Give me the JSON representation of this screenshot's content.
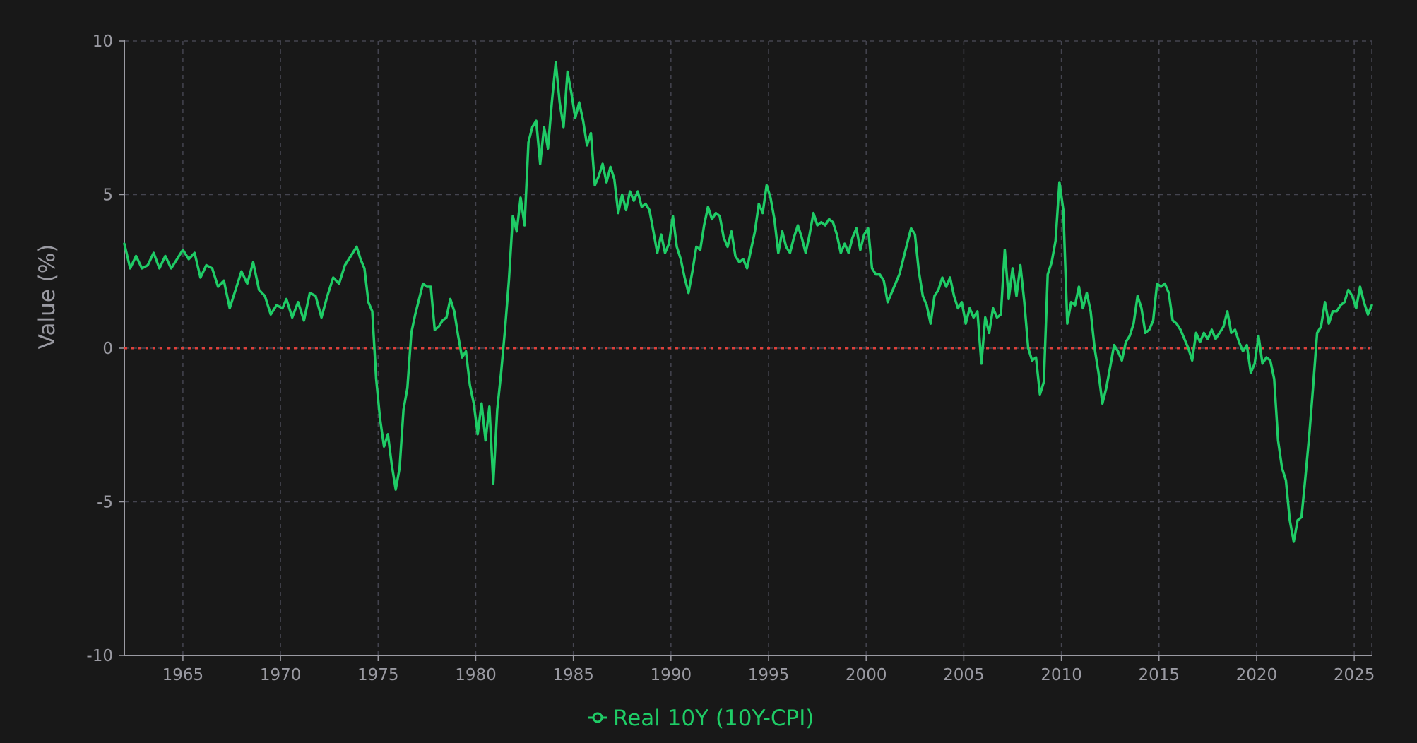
{
  "chart_data": {
    "type": "line",
    "title": "",
    "xlabel": "",
    "ylabel": "Value (%)",
    "xlim": [
      1962.0,
      2025.9
    ],
    "ylim": [
      -10,
      10
    ],
    "x_ticks": [
      1965,
      1970,
      1975,
      1980,
      1985,
      1990,
      1995,
      2000,
      2005,
      2010,
      2015,
      2020,
      2025
    ],
    "y_ticks": [
      -10,
      -5,
      0,
      5,
      10
    ],
    "grid": true,
    "legend_position": "bottom-center",
    "reference_line": {
      "y": 0,
      "color": "#e0403a",
      "style": "dotted"
    },
    "series": [
      {
        "name": "Real 10Y (10Y-CPI)",
        "color": "#1fcc66",
        "points": [
          [
            1962.0,
            3.4
          ],
          [
            1962.3,
            2.6
          ],
          [
            1962.6,
            3.0
          ],
          [
            1962.9,
            2.6
          ],
          [
            1963.2,
            2.7
          ],
          [
            1963.5,
            3.1
          ],
          [
            1963.8,
            2.6
          ],
          [
            1964.1,
            3.0
          ],
          [
            1964.4,
            2.6
          ],
          [
            1964.7,
            2.9
          ],
          [
            1965.0,
            3.2
          ],
          [
            1965.3,
            2.9
          ],
          [
            1965.6,
            3.1
          ],
          [
            1965.9,
            2.3
          ],
          [
            1966.2,
            2.7
          ],
          [
            1966.5,
            2.6
          ],
          [
            1966.8,
            2.0
          ],
          [
            1967.1,
            2.2
          ],
          [
            1967.4,
            1.3
          ],
          [
            1967.7,
            1.9
          ],
          [
            1968.0,
            2.5
          ],
          [
            1968.3,
            2.1
          ],
          [
            1968.6,
            2.8
          ],
          [
            1968.9,
            1.9
          ],
          [
            1969.2,
            1.7
          ],
          [
            1969.5,
            1.1
          ],
          [
            1969.8,
            1.4
          ],
          [
            1970.1,
            1.3
          ],
          [
            1970.3,
            1.6
          ],
          [
            1970.6,
            1.0
          ],
          [
            1970.9,
            1.5
          ],
          [
            1971.2,
            0.9
          ],
          [
            1971.5,
            1.8
          ],
          [
            1971.8,
            1.7
          ],
          [
            1972.1,
            1.0
          ],
          [
            1972.4,
            1.7
          ],
          [
            1972.7,
            2.3
          ],
          [
            1973.0,
            2.1
          ],
          [
            1973.3,
            2.7
          ],
          [
            1973.6,
            3.0
          ],
          [
            1973.9,
            3.3
          ],
          [
            1974.1,
            2.9
          ],
          [
            1974.3,
            2.6
          ],
          [
            1974.5,
            1.5
          ],
          [
            1974.7,
            1.2
          ],
          [
            1974.9,
            -1.0
          ],
          [
            1975.1,
            -2.3
          ],
          [
            1975.3,
            -3.2
          ],
          [
            1975.5,
            -2.8
          ],
          [
            1975.7,
            -3.8
          ],
          [
            1975.9,
            -4.6
          ],
          [
            1976.1,
            -3.9
          ],
          [
            1976.3,
            -2.0
          ],
          [
            1976.5,
            -1.3
          ],
          [
            1976.7,
            0.5
          ],
          [
            1976.9,
            1.1
          ],
          [
            1977.1,
            1.6
          ],
          [
            1977.3,
            2.1
          ],
          [
            1977.5,
            2.0
          ],
          [
            1977.7,
            2.0
          ],
          [
            1977.9,
            0.6
          ],
          [
            1978.1,
            0.7
          ],
          [
            1978.3,
            0.9
          ],
          [
            1978.5,
            1.0
          ],
          [
            1978.7,
            1.6
          ],
          [
            1978.9,
            1.2
          ],
          [
            1979.1,
            0.4
          ],
          [
            1979.3,
            -0.3
          ],
          [
            1979.5,
            -0.1
          ],
          [
            1979.7,
            -1.2
          ],
          [
            1979.9,
            -1.8
          ],
          [
            1980.1,
            -2.8
          ],
          [
            1980.3,
            -1.8
          ],
          [
            1980.5,
            -3.0
          ],
          [
            1980.7,
            -1.9
          ],
          [
            1980.9,
            -4.4
          ],
          [
            1981.1,
            -2.0
          ],
          [
            1981.3,
            -0.8
          ],
          [
            1981.5,
            0.6
          ],
          [
            1981.7,
            2.2
          ],
          [
            1981.9,
            4.3
          ],
          [
            1982.1,
            3.8
          ],
          [
            1982.3,
            4.9
          ],
          [
            1982.5,
            4.0
          ],
          [
            1982.7,
            6.7
          ],
          [
            1982.9,
            7.2
          ],
          [
            1983.1,
            7.4
          ],
          [
            1983.3,
            6.0
          ],
          [
            1983.5,
            7.2
          ],
          [
            1983.7,
            6.5
          ],
          [
            1983.9,
            8.0
          ],
          [
            1984.1,
            9.3
          ],
          [
            1984.3,
            8.0
          ],
          [
            1984.5,
            7.2
          ],
          [
            1984.7,
            9.0
          ],
          [
            1984.9,
            8.3
          ],
          [
            1985.1,
            7.5
          ],
          [
            1985.3,
            8.0
          ],
          [
            1985.5,
            7.4
          ],
          [
            1985.7,
            6.6
          ],
          [
            1985.9,
            7.0
          ],
          [
            1986.1,
            5.3
          ],
          [
            1986.3,
            5.6
          ],
          [
            1986.5,
            6.0
          ],
          [
            1986.7,
            5.4
          ],
          [
            1986.9,
            5.9
          ],
          [
            1987.1,
            5.5
          ],
          [
            1987.3,
            4.4
          ],
          [
            1987.5,
            5.0
          ],
          [
            1987.7,
            4.5
          ],
          [
            1987.9,
            5.1
          ],
          [
            1988.1,
            4.8
          ],
          [
            1988.3,
            5.1
          ],
          [
            1988.5,
            4.6
          ],
          [
            1988.7,
            4.7
          ],
          [
            1988.9,
            4.5
          ],
          [
            1989.1,
            3.8
          ],
          [
            1989.3,
            3.1
          ],
          [
            1989.5,
            3.7
          ],
          [
            1989.7,
            3.1
          ],
          [
            1989.9,
            3.4
          ],
          [
            1990.1,
            4.3
          ],
          [
            1990.3,
            3.3
          ],
          [
            1990.5,
            2.9
          ],
          [
            1990.7,
            2.3
          ],
          [
            1990.9,
            1.8
          ],
          [
            1991.1,
            2.5
          ],
          [
            1991.3,
            3.3
          ],
          [
            1991.5,
            3.2
          ],
          [
            1991.7,
            4.0
          ],
          [
            1991.9,
            4.6
          ],
          [
            1992.1,
            4.2
          ],
          [
            1992.3,
            4.4
          ],
          [
            1992.5,
            4.3
          ],
          [
            1992.7,
            3.6
          ],
          [
            1992.9,
            3.3
          ],
          [
            1993.1,
            3.8
          ],
          [
            1993.3,
            3.0
          ],
          [
            1993.5,
            2.8
          ],
          [
            1993.7,
            2.9
          ],
          [
            1993.9,
            2.6
          ],
          [
            1994.1,
            3.2
          ],
          [
            1994.3,
            3.8
          ],
          [
            1994.5,
            4.7
          ],
          [
            1994.7,
            4.4
          ],
          [
            1994.9,
            5.3
          ],
          [
            1995.1,
            4.9
          ],
          [
            1995.3,
            4.2
          ],
          [
            1995.5,
            3.1
          ],
          [
            1995.7,
            3.8
          ],
          [
            1995.9,
            3.3
          ],
          [
            1996.1,
            3.1
          ],
          [
            1996.3,
            3.6
          ],
          [
            1996.5,
            4.0
          ],
          [
            1996.7,
            3.6
          ],
          [
            1996.9,
            3.1
          ],
          [
            1997.1,
            3.7
          ],
          [
            1997.3,
            4.4
          ],
          [
            1997.5,
            4.0
          ],
          [
            1997.7,
            4.1
          ],
          [
            1997.9,
            4.0
          ],
          [
            1998.1,
            4.2
          ],
          [
            1998.3,
            4.1
          ],
          [
            1998.5,
            3.7
          ],
          [
            1998.7,
            3.1
          ],
          [
            1998.9,
            3.4
          ],
          [
            1999.1,
            3.1
          ],
          [
            1999.3,
            3.6
          ],
          [
            1999.5,
            3.9
          ],
          [
            1999.7,
            3.2
          ],
          [
            1999.9,
            3.7
          ],
          [
            2000.1,
            3.9
          ],
          [
            2000.3,
            2.6
          ],
          [
            2000.5,
            2.4
          ],
          [
            2000.7,
            2.4
          ],
          [
            2000.9,
            2.2
          ],
          [
            2001.1,
            1.5
          ],
          [
            2001.3,
            1.8
          ],
          [
            2001.5,
            2.1
          ],
          [
            2001.7,
            2.4
          ],
          [
            2001.9,
            2.9
          ],
          [
            2002.1,
            3.4
          ],
          [
            2002.3,
            3.9
          ],
          [
            2002.5,
            3.7
          ],
          [
            2002.7,
            2.5
          ],
          [
            2002.9,
            1.7
          ],
          [
            2003.1,
            1.4
          ],
          [
            2003.3,
            0.8
          ],
          [
            2003.5,
            1.7
          ],
          [
            2003.7,
            1.9
          ],
          [
            2003.9,
            2.3
          ],
          [
            2004.1,
            2.0
          ],
          [
            2004.3,
            2.3
          ],
          [
            2004.5,
            1.7
          ],
          [
            2004.7,
            1.3
          ],
          [
            2004.9,
            1.5
          ],
          [
            2005.1,
            0.8
          ],
          [
            2005.3,
            1.3
          ],
          [
            2005.5,
            1.0
          ],
          [
            2005.7,
            1.2
          ],
          [
            2005.9,
            -0.5
          ],
          [
            2006.1,
            1.0
          ],
          [
            2006.3,
            0.5
          ],
          [
            2006.5,
            1.3
          ],
          [
            2006.7,
            1.0
          ],
          [
            2006.9,
            1.1
          ],
          [
            2007.1,
            3.2
          ],
          [
            2007.3,
            1.6
          ],
          [
            2007.5,
            2.6
          ],
          [
            2007.7,
            1.7
          ],
          [
            2007.9,
            2.7
          ],
          [
            2008.1,
            1.5
          ],
          [
            2008.3,
            0.0
          ],
          [
            2008.5,
            -0.4
          ],
          [
            2008.7,
            -0.3
          ],
          [
            2008.9,
            -1.5
          ],
          [
            2009.1,
            -1.1
          ],
          [
            2009.3,
            2.4
          ],
          [
            2009.5,
            2.8
          ],
          [
            2009.7,
            3.5
          ],
          [
            2009.9,
            5.4
          ],
          [
            2010.1,
            4.5
          ],
          [
            2010.3,
            0.8
          ],
          [
            2010.5,
            1.5
          ],
          [
            2010.7,
            1.4
          ],
          [
            2010.9,
            2.0
          ],
          [
            2011.1,
            1.3
          ],
          [
            2011.3,
            1.8
          ],
          [
            2011.5,
            1.2
          ],
          [
            2011.7,
            0.0
          ],
          [
            2011.9,
            -0.8
          ],
          [
            2012.1,
            -1.8
          ],
          [
            2012.3,
            -1.3
          ],
          [
            2012.5,
            -0.6
          ],
          [
            2012.7,
            0.1
          ],
          [
            2012.9,
            -0.1
          ],
          [
            2013.1,
            -0.4
          ],
          [
            2013.3,
            0.2
          ],
          [
            2013.5,
            0.4
          ],
          [
            2013.7,
            0.8
          ],
          [
            2013.9,
            1.7
          ],
          [
            2014.1,
            1.3
          ],
          [
            2014.3,
            0.5
          ],
          [
            2014.5,
            0.6
          ],
          [
            2014.7,
            0.9
          ],
          [
            2014.9,
            2.1
          ],
          [
            2015.1,
            2.0
          ],
          [
            2015.3,
            2.1
          ],
          [
            2015.5,
            1.8
          ],
          [
            2015.7,
            0.9
          ],
          [
            2015.9,
            0.8
          ],
          [
            2016.1,
            0.6
          ],
          [
            2016.3,
            0.3
          ],
          [
            2016.5,
            0.0
          ],
          [
            2016.7,
            -0.4
          ],
          [
            2016.9,
            0.5
          ],
          [
            2017.1,
            0.2
          ],
          [
            2017.3,
            0.5
          ],
          [
            2017.5,
            0.3
          ],
          [
            2017.7,
            0.6
          ],
          [
            2017.9,
            0.3
          ],
          [
            2018.1,
            0.5
          ],
          [
            2018.3,
            0.7
          ],
          [
            2018.5,
            1.2
          ],
          [
            2018.7,
            0.5
          ],
          [
            2018.9,
            0.6
          ],
          [
            2019.1,
            0.2
          ],
          [
            2019.3,
            -0.1
          ],
          [
            2019.5,
            0.1
          ],
          [
            2019.7,
            -0.8
          ],
          [
            2019.9,
            -0.5
          ],
          [
            2020.1,
            0.4
          ],
          [
            2020.3,
            -0.5
          ],
          [
            2020.5,
            -0.3
          ],
          [
            2020.7,
            -0.4
          ],
          [
            2020.9,
            -1.0
          ],
          [
            2021.1,
            -3.0
          ],
          [
            2021.3,
            -3.9
          ],
          [
            2021.5,
            -4.3
          ],
          [
            2021.7,
            -5.6
          ],
          [
            2021.9,
            -6.3
          ],
          [
            2022.1,
            -5.6
          ],
          [
            2022.3,
            -5.5
          ],
          [
            2022.5,
            -4.2
          ],
          [
            2022.7,
            -2.8
          ],
          [
            2022.9,
            -1.2
          ],
          [
            2023.1,
            0.5
          ],
          [
            2023.3,
            0.7
          ],
          [
            2023.5,
            1.5
          ],
          [
            2023.7,
            0.8
          ],
          [
            2023.9,
            1.2
          ],
          [
            2024.1,
            1.2
          ],
          [
            2024.3,
            1.4
          ],
          [
            2024.5,
            1.5
          ],
          [
            2024.7,
            1.9
          ],
          [
            2024.9,
            1.7
          ],
          [
            2025.1,
            1.3
          ],
          [
            2025.3,
            2.0
          ],
          [
            2025.5,
            1.5
          ],
          [
            2025.7,
            1.1
          ],
          [
            2025.9,
            1.4
          ]
        ]
      }
    ]
  }
}
